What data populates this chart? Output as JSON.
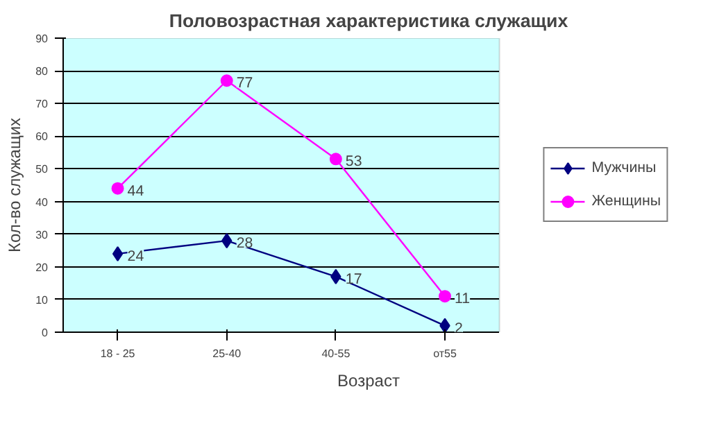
{
  "chart_data": {
    "type": "line",
    "title": "Половозрастная характеристика служащих",
    "xlabel": "Возраст",
    "ylabel": "Кол-во служащих",
    "categories": [
      "18 - 25",
      "25-40",
      "40-55",
      "от55"
    ],
    "series": [
      {
        "name": "Мужчины",
        "color": "#000080",
        "marker": "diamond",
        "values": [
          24,
          28,
          17,
          2
        ]
      },
      {
        "name": "Женщины",
        "color": "#ff00ff",
        "marker": "circle",
        "values": [
          44,
          77,
          53,
          11
        ]
      }
    ],
    "ylim": [
      0,
      90
    ],
    "yticks": [
      0,
      10,
      20,
      30,
      40,
      50,
      60,
      70,
      80,
      90
    ],
    "grid": "y",
    "legend": "right",
    "data_labels": true
  }
}
